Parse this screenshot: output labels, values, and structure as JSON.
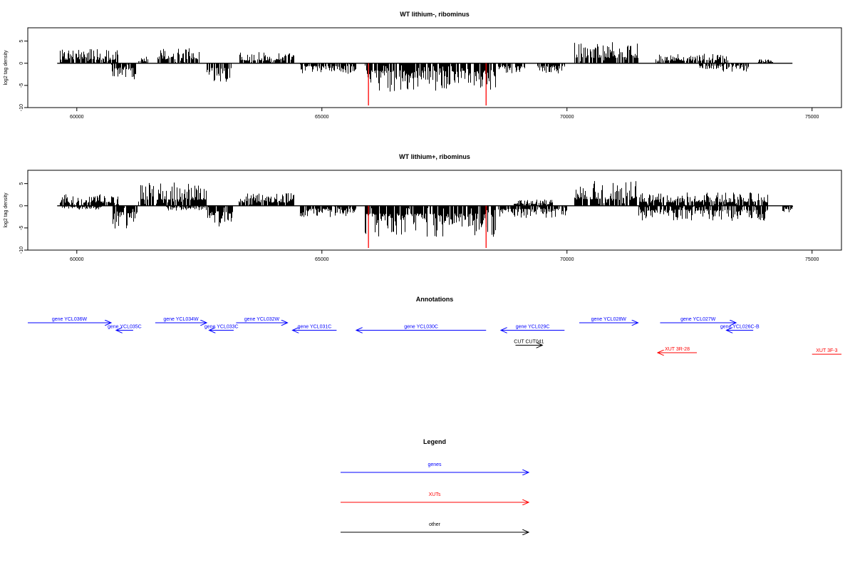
{
  "chart_data": [
    {
      "type": "bar",
      "title": "WT lithium-, ribominus",
      "xlabel": "",
      "ylabel": "log2 tag density",
      "xlim": [
        59000,
        75600
      ],
      "ylim": [
        -10,
        8
      ],
      "x_ticks": [
        60000,
        65000,
        70000,
        75000
      ],
      "x_tick_labels": [
        "60000",
        "65000",
        "70000",
        "75000"
      ],
      "y_ticks": [
        5,
        0,
        -5,
        -10
      ],
      "y_tick_labels": [
        "5",
        "0",
        "-5",
        "-10"
      ],
      "baseline": {
        "from": 59600,
        "to": 74600,
        "value": 0
      },
      "highlight_lines": [
        65950,
        68350
      ],
      "highlight_color": "#ff0000",
      "grid": false,
      "segments": [
        {
          "from": 59650,
          "to": 60850,
          "sign": 1,
          "amp": 3.2
        },
        {
          "from": 60700,
          "to": 61220,
          "sign": -1,
          "amp": 3.8
        },
        {
          "from": 61250,
          "to": 61450,
          "sign": 1,
          "amp": 1.6
        },
        {
          "from": 61650,
          "to": 62500,
          "sign": 1,
          "amp": 3.6
        },
        {
          "from": 62650,
          "to": 63150,
          "sign": -1,
          "amp": 4.2
        },
        {
          "from": 63300,
          "to": 64450,
          "sign": 1,
          "amp": 2.5
        },
        {
          "from": 64550,
          "to": 65700,
          "sign": -1,
          "amp": 2.4
        },
        {
          "from": 65880,
          "to": 68550,
          "sign": -1,
          "amp": 6.5
        },
        {
          "from": 68600,
          "to": 69150,
          "sign": -1,
          "amp": 2.6
        },
        {
          "from": 69400,
          "to": 69950,
          "sign": -1,
          "amp": 2.3
        },
        {
          "from": 70150,
          "to": 71450,
          "sign": 1,
          "amp": 4.8
        },
        {
          "from": 71800,
          "to": 73300,
          "sign": 1,
          "amp": 2.2
        },
        {
          "from": 72700,
          "to": 73700,
          "sign": -1,
          "amp": 2.0
        },
        {
          "from": 73900,
          "to": 74200,
          "sign": 1,
          "amp": 1.0
        }
      ]
    },
    {
      "type": "bar",
      "title": "WT lithium+, ribominus",
      "xlabel": "",
      "ylabel": "log2 tag density",
      "xlim": [
        59000,
        75600
      ],
      "ylim": [
        -10,
        8
      ],
      "x_ticks": [
        60000,
        65000,
        70000,
        75000
      ],
      "x_tick_labels": [
        "60000",
        "65000",
        "70000",
        "75000"
      ],
      "y_ticks": [
        5,
        0,
        -5,
        -10
      ],
      "y_tick_labels": [
        "5",
        "0",
        "-5",
        "-10"
      ],
      "baseline": {
        "from": 59600,
        "to": 74600,
        "value": 0
      },
      "highlight_lines": [
        65950,
        68350
      ],
      "highlight_color": "#ff0000",
      "grid": false,
      "segments": [
        {
          "from": 59650,
          "to": 60850,
          "sign": 1,
          "amp": 2.6
        },
        {
          "from": 59700,
          "to": 60500,
          "sign": -1,
          "amp": 0.9
        },
        {
          "from": 60700,
          "to": 61230,
          "sign": -1,
          "amp": 5.2
        },
        {
          "from": 61250,
          "to": 62650,
          "sign": 1,
          "amp": 5.4
        },
        {
          "from": 61800,
          "to": 62700,
          "sign": -1,
          "amp": 1.2
        },
        {
          "from": 62650,
          "to": 63200,
          "sign": -1,
          "amp": 5.0
        },
        {
          "from": 63300,
          "to": 64450,
          "sign": 1,
          "amp": 3.0
        },
        {
          "from": 64550,
          "to": 65700,
          "sign": -1,
          "amp": 2.6
        },
        {
          "from": 65880,
          "to": 68550,
          "sign": -1,
          "amp": 7.0
        },
        {
          "from": 68600,
          "to": 70000,
          "sign": -1,
          "amp": 2.8
        },
        {
          "from": 68900,
          "to": 69700,
          "sign": 1,
          "amp": 1.4
        },
        {
          "from": 70150,
          "to": 71450,
          "sign": 1,
          "amp": 5.8
        },
        {
          "from": 71450,
          "to": 74100,
          "sign": 1,
          "amp": 3.0
        },
        {
          "from": 71450,
          "to": 74100,
          "sign": -1,
          "amp": 3.4
        },
        {
          "from": 74400,
          "to": 74600,
          "sign": -1,
          "amp": 2.5
        }
      ]
    }
  ],
  "annotations": {
    "title": "Annotations",
    "items": [
      {
        "label": "gene YCL036W",
        "from": 59000,
        "to": 60700,
        "row": 0,
        "dir": "right",
        "color": "#0000ff"
      },
      {
        "label": "gene YCL035C",
        "from": 60800,
        "to": 61150,
        "row": 1,
        "dir": "left",
        "color": "#0000ff"
      },
      {
        "label": "gene YCL034W",
        "from": 61600,
        "to": 62650,
        "row": 0,
        "dir": "right",
        "color": "#0000ff"
      },
      {
        "label": "gene YCL033C",
        "from": 62700,
        "to": 63200,
        "row": 1,
        "dir": "left",
        "color": "#0000ff"
      },
      {
        "label": "gene YCL032W",
        "from": 63250,
        "to": 64300,
        "row": 0,
        "dir": "right",
        "color": "#0000ff"
      },
      {
        "label": "gene YCL031C",
        "from": 64400,
        "to": 65300,
        "row": 1,
        "dir": "left",
        "color": "#0000ff"
      },
      {
        "label": "gene YCL030C",
        "from": 65700,
        "to": 68350,
        "row": 1,
        "dir": "left",
        "color": "#0000ff"
      },
      {
        "label": "gene YCL029C",
        "from": 68650,
        "to": 69950,
        "row": 1,
        "dir": "left",
        "color": "#0000ff"
      },
      {
        "label": "gene YCL028W",
        "from": 70250,
        "to": 71450,
        "row": 0,
        "dir": "right",
        "color": "#0000ff"
      },
      {
        "label": "gene YCL027W",
        "from": 71900,
        "to": 73450,
        "row": 0,
        "dir": "right",
        "color": "#0000ff"
      },
      {
        "label": "gene YCL026C-B",
        "from": 73250,
        "to": 73800,
        "row": 1,
        "dir": "left",
        "color": "#0000ff"
      },
      {
        "label": "CUT CUT041",
        "from": 68950,
        "to": 69500,
        "row": 3,
        "dir": "right",
        "color": "#000000"
      },
      {
        "label": "XUT 3R-28",
        "from": 71850,
        "to": 72650,
        "row": 4,
        "dir": "left",
        "color": "#ff0000"
      },
      {
        "label": "XUT 3F-3",
        "from": 75000,
        "to": 75600,
        "row": 4.2,
        "dir": "none",
        "color": "#ff0000"
      }
    ]
  },
  "legend": {
    "title": "Legend",
    "items": [
      {
        "label": "genes",
        "color": "#0000ff"
      },
      {
        "label": "XUTs",
        "color": "#ff0000"
      },
      {
        "label": "other",
        "color": "#000000"
      }
    ]
  }
}
